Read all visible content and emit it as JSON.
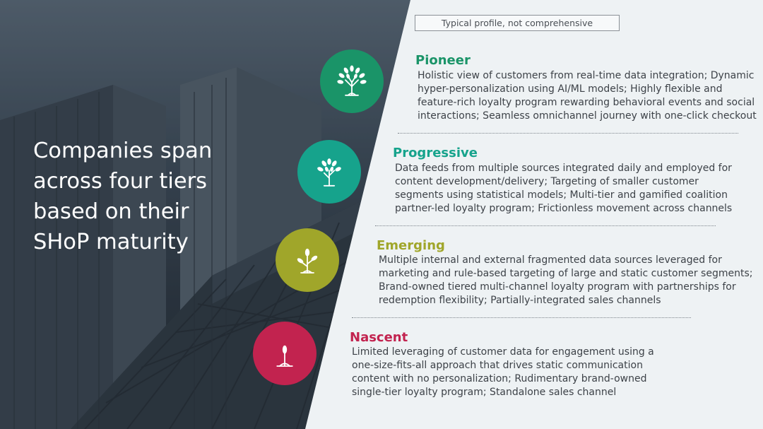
{
  "headline": "Companies span across four tiers based on their SHoP maturity",
  "note": "Typical profile, not comprehensive",
  "colors": {
    "pioneer": "#1a9468",
    "progressive": "#16a38c",
    "emerging": "#a0a62a",
    "nascent": "#c2234f"
  },
  "tiers": [
    {
      "name": "Pioneer",
      "icon": "full-tree-icon",
      "desc": [
        "Holistic view of customers from real-time data integration; Dynamic",
        "hyper-personalization using AI/ML models; Highly flexible and",
        "feature-rich loyalty program rewarding behavioral events and social",
        "interactions; Seamless omnichannel journey with one-click checkout"
      ]
    },
    {
      "name": "Progressive",
      "icon": "growing-tree-icon",
      "desc": [
        "Data feeds from multiple sources integrated daily and employed for",
        "content development/delivery; Targeting of smaller customer",
        "segments using statistical models; Multi-tier and gamified coalition",
        "partner-led loyalty program; Frictionless movement across channels"
      ]
    },
    {
      "name": "Emerging",
      "icon": "sapling-icon",
      "desc": [
        "Multiple internal and external fragmented data sources leveraged for",
        "marketing and rule-based targeting of large and static customer segments;",
        "Brand-owned tiered multi-channel loyalty program with partnerships for",
        "redemption flexibility; Partially-integrated sales channels"
      ]
    },
    {
      "name": "Nascent",
      "icon": "sprout-icon",
      "desc": [
        "Limited leveraging of customer data for engagement using a",
        "one-size-fits-all approach that drives static communication",
        "content with no personalization; Rudimentary brand-owned",
        "single-tier loyalty program; Standalone sales channel"
      ]
    }
  ]
}
